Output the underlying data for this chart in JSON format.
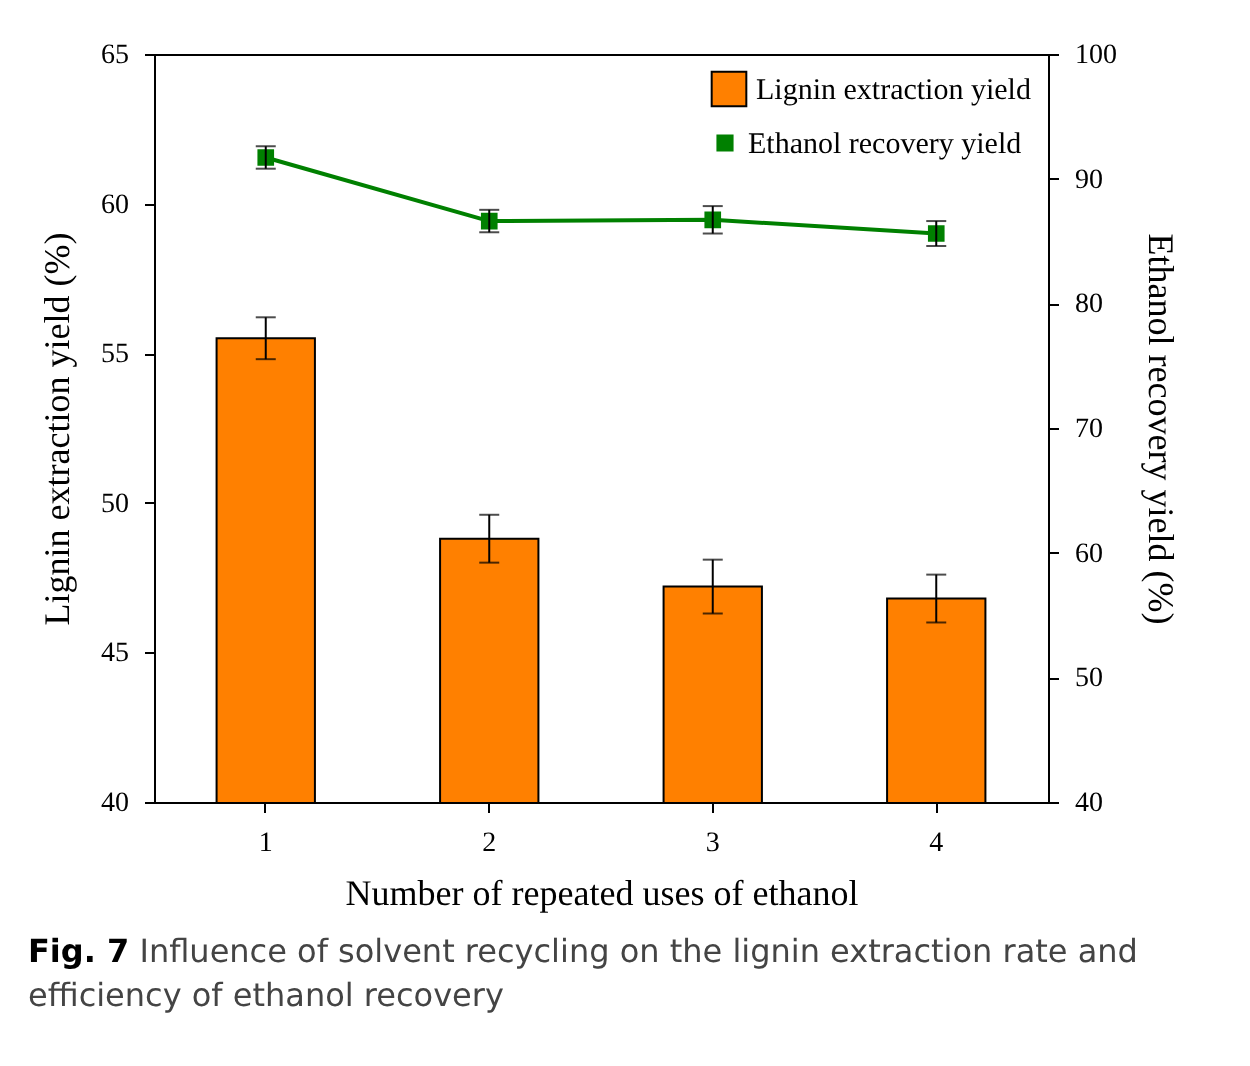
{
  "chart_data": {
    "type": "bar",
    "categories": [
      "1",
      "2",
      "3",
      "4"
    ],
    "xlabel": "Number of repeated uses of ethanol",
    "ylabel": "Lignin extraction yield (%)",
    "y2label": "Ethanol recovery yield (%)",
    "ylim": [
      40,
      65
    ],
    "yticks": [
      40,
      45,
      50,
      55,
      60,
      65
    ],
    "y2lim": [
      40,
      100
    ],
    "y2ticks": [
      40,
      50,
      60,
      70,
      80,
      90,
      100
    ],
    "legend": "top right",
    "grid": false,
    "series": [
      {
        "name": "Lignin extraction yield",
        "color": "#ff8000",
        "values": [
          55.5,
          48.8,
          47.2,
          46.8
        ],
        "errors": [
          0.7,
          0.8,
          0.9,
          0.8
        ]
      },
      {
        "name": "Ethanol recovery yield",
        "type": "line",
        "axis": "y2",
        "color": "#008000",
        "marker": "square",
        "line_style": "solid",
        "values": [
          91.7,
          86.6,
          86.7,
          85.6
        ],
        "errors": [
          0.9,
          0.9,
          1.1,
          1.0
        ]
      }
    ],
    "annotations": [
      "**Fig. 7** Influence of solvent recycling on the lignin extraction rate and efficiency of ethanol recovery"
    ]
  }
}
